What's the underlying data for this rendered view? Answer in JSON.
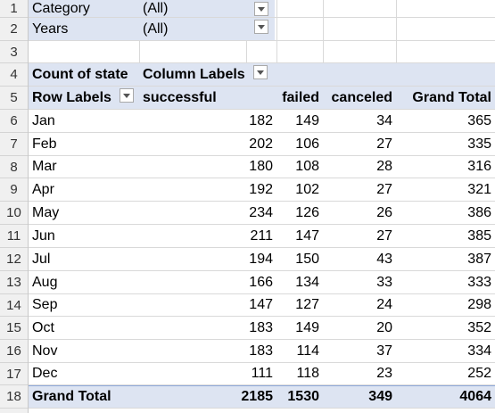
{
  "row_numbers": [
    "1",
    "2",
    "3",
    "4",
    "5",
    "6",
    "7",
    "8",
    "9",
    "10",
    "11",
    "12",
    "13",
    "14",
    "15",
    "16",
    "17",
    "18"
  ],
  "filters": [
    {
      "label": "Category",
      "value": "(All)"
    },
    {
      "label": "Years",
      "value": "(All)"
    }
  ],
  "pivot": {
    "count_label": "Count of state",
    "column_labels": "Column Labels",
    "row_labels": "Row Labels",
    "headers": [
      "successful",
      "failed",
      "canceled",
      "Grand Total"
    ],
    "rows": [
      {
        "label": "Jan",
        "values": [
          "182",
          "149",
          "34",
          "365"
        ]
      },
      {
        "label": "Feb",
        "values": [
          "202",
          "106",
          "27",
          "335"
        ]
      },
      {
        "label": "Mar",
        "values": [
          "180",
          "108",
          "28",
          "316"
        ]
      },
      {
        "label": "Apr",
        "values": [
          "192",
          "102",
          "27",
          "321"
        ]
      },
      {
        "label": "May",
        "values": [
          "234",
          "126",
          "26",
          "386"
        ]
      },
      {
        "label": "Jun",
        "values": [
          "211",
          "147",
          "27",
          "385"
        ]
      },
      {
        "label": "Jul",
        "values": [
          "194",
          "150",
          "43",
          "387"
        ]
      },
      {
        "label": "Aug",
        "values": [
          "166",
          "134",
          "33",
          "333"
        ]
      },
      {
        "label": "Sep",
        "values": [
          "147",
          "127",
          "24",
          "298"
        ]
      },
      {
        "label": "Oct",
        "values": [
          "183",
          "149",
          "20",
          "352"
        ]
      },
      {
        "label": "Nov",
        "values": [
          "183",
          "114",
          "37",
          "334"
        ]
      },
      {
        "label": "Dec",
        "values": [
          "111",
          "118",
          "23",
          "252"
        ]
      }
    ],
    "grand_total": {
      "label": "Grand Total",
      "values": [
        "2185",
        "1530",
        "349",
        "4064"
      ]
    }
  },
  "colors": {
    "pivot_band": "#dde4f2",
    "grid_line": "#d9d9d9",
    "header_bg": "#f0f0f0"
  },
  "icons": {
    "dropdown": "chevron-down-icon",
    "filter": "filter-sort-icon"
  }
}
